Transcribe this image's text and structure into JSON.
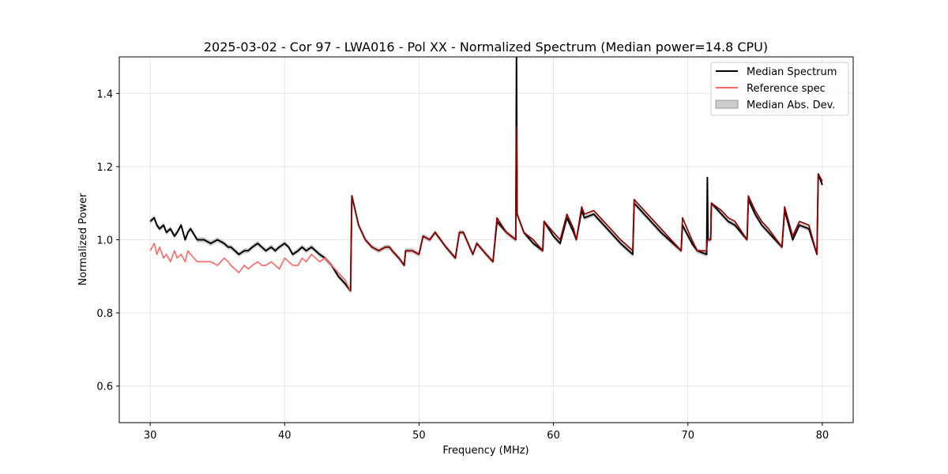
{
  "chart_data": {
    "type": "line",
    "title": "2025-03-02 - Cor 97 - LWA016 - Pol XX - Normalized Spectrum (Median power=14.8 CPU)",
    "xlabel": "Frequency (MHz)",
    "ylabel": "Normalized Power",
    "xlim": [
      27.7,
      82.3
    ],
    "ylim": [
      0.5,
      1.5
    ],
    "xticks": [
      30,
      40,
      50,
      60,
      70,
      80
    ],
    "yticks": [
      0.6,
      0.8,
      1.0,
      1.2,
      1.4
    ],
    "xtick_labels": [
      "30",
      "40",
      "50",
      "60",
      "70",
      "80"
    ],
    "ytick_labels": [
      "0.6",
      "0.8",
      "1.0",
      "1.2",
      "1.4"
    ],
    "grid": true,
    "legend_position": "top-right",
    "legend": [
      "Median Spectrum",
      "Reference spec",
      "Median Abs. Dev."
    ],
    "colors": {
      "median": "#000000",
      "reference": "#ff6666",
      "overlap": "#8b0000",
      "mad": "#aaaaaa"
    },
    "series": [
      {
        "name": "Median Spectrum",
        "x": [
          30.0,
          30.3,
          30.5,
          30.7,
          31.0,
          31.2,
          31.5,
          31.8,
          32.0,
          32.3,
          32.6,
          32.8,
          33.0,
          33.5,
          34.0,
          34.5,
          35.0,
          35.5,
          35.8,
          36.0,
          36.3,
          36.6,
          37.0,
          37.3,
          37.6,
          38.0,
          38.3,
          38.6,
          39.0,
          39.3,
          39.6,
          40.0,
          40.3,
          40.6,
          41.0,
          41.3,
          41.6,
          42.0,
          42.3,
          42.6,
          43.0,
          43.5,
          44.0,
          44.5,
          44.9,
          45.0,
          45.5,
          46.0,
          46.5,
          47.0,
          47.5,
          47.8,
          48.0,
          48.5,
          48.9,
          49.0,
          49.5,
          50.0,
          50.3,
          50.8,
          51.2,
          52.0,
          52.7,
          53.0,
          53.3,
          54.0,
          54.3,
          55.0,
          55.5,
          55.8,
          56.5,
          57.2,
          57.25,
          57.3,
          57.8,
          58.5,
          59.2,
          59.3,
          60.0,
          60.5,
          61.0,
          61.5,
          61.7,
          62.1,
          62.3,
          63.0,
          64.0,
          65.0,
          65.9,
          66.0,
          67.0,
          68.0,
          69.5,
          69.6,
          70.3,
          70.7,
          71.4,
          71.45,
          71.5,
          71.7,
          71.75,
          72.5,
          73.0,
          73.5,
          74.4,
          74.5,
          75.0,
          75.5,
          76.0,
          77.0,
          77.2,
          77.8,
          78.3,
          79.0,
          79.6,
          79.7,
          80.0
        ],
        "values": [
          1.05,
          1.06,
          1.04,
          1.03,
          1.04,
          1.02,
          1.03,
          1.01,
          1.02,
          1.04,
          1.0,
          1.02,
          1.03,
          1.0,
          1.0,
          0.99,
          1.0,
          0.99,
          0.98,
          0.98,
          0.97,
          0.96,
          0.97,
          0.97,
          0.98,
          0.99,
          0.98,
          0.97,
          0.98,
          0.97,
          0.98,
          0.99,
          0.98,
          0.96,
          0.97,
          0.98,
          0.97,
          0.98,
          0.97,
          0.96,
          0.95,
          0.93,
          0.9,
          0.88,
          0.86,
          1.12,
          1.04,
          1.0,
          0.98,
          0.97,
          0.98,
          0.98,
          0.97,
          0.95,
          0.93,
          0.97,
          0.97,
          0.96,
          1.01,
          1.0,
          1.02,
          0.98,
          0.95,
          1.02,
          1.02,
          0.96,
          0.99,
          0.96,
          0.94,
          1.05,
          1.02,
          1.0,
          1.5,
          1.07,
          1.02,
          0.99,
          0.97,
          1.05,
          1.01,
          0.99,
          1.06,
          1.02,
          1.0,
          1.08,
          1.06,
          1.07,
          1.03,
          0.99,
          0.96,
          1.1,
          1.06,
          1.02,
          0.97,
          1.04,
          0.99,
          0.97,
          0.96,
          1.17,
          1.0,
          1.0,
          1.1,
          1.07,
          1.05,
          1.04,
          1.0,
          1.11,
          1.07,
          1.04,
          1.02,
          0.98,
          1.08,
          1.0,
          1.04,
          1.03,
          0.96,
          1.18,
          1.15
        ]
      },
      {
        "name": "Reference spec",
        "x": [
          30.0,
          30.3,
          30.5,
          30.7,
          31.0,
          31.2,
          31.5,
          31.8,
          32.0,
          32.3,
          32.6,
          32.8,
          33.0,
          33.5,
          34.0,
          34.5,
          35.0,
          35.5,
          35.8,
          36.0,
          36.3,
          36.6,
          37.0,
          37.3,
          37.6,
          38.0,
          38.3,
          38.6,
          39.0,
          39.3,
          39.6,
          40.0,
          40.3,
          40.6,
          41.0,
          41.3,
          41.6,
          42.0,
          42.3,
          42.6,
          43.0,
          43.5,
          44.0,
          44.5,
          44.9,
          45.0,
          45.5,
          46.0,
          46.5,
          47.0,
          47.5,
          47.8,
          48.0,
          48.5,
          48.9,
          49.0,
          49.5,
          50.0,
          50.3,
          50.8,
          51.2,
          52.0,
          52.7,
          53.0,
          53.3,
          54.0,
          54.3,
          55.0,
          55.5,
          55.8,
          56.5,
          57.2,
          57.25,
          57.3,
          57.8,
          58.5,
          59.2,
          59.3,
          60.0,
          60.5,
          61.0,
          61.5,
          61.7,
          62.1,
          62.3,
          63.0,
          64.0,
          65.0,
          65.9,
          66.0,
          67.0,
          68.0,
          69.5,
          69.6,
          70.3,
          70.7,
          71.4,
          71.45,
          71.5,
          71.7,
          71.75,
          72.5,
          73.0,
          73.5,
          74.4,
          74.5,
          75.0,
          75.5,
          76.0,
          77.0,
          77.2,
          77.8,
          78.3,
          79.0,
          79.6,
          79.7,
          80.0
        ],
        "values": [
          0.97,
          0.99,
          0.96,
          0.98,
          0.95,
          0.96,
          0.94,
          0.97,
          0.95,
          0.96,
          0.94,
          0.97,
          0.96,
          0.94,
          0.94,
          0.94,
          0.93,
          0.95,
          0.94,
          0.93,
          0.92,
          0.91,
          0.93,
          0.92,
          0.93,
          0.94,
          0.93,
          0.93,
          0.94,
          0.93,
          0.92,
          0.95,
          0.94,
          0.93,
          0.93,
          0.95,
          0.94,
          0.96,
          0.95,
          0.94,
          0.95,
          0.93,
          0.91,
          0.89,
          0.86,
          1.12,
          1.04,
          1.0,
          0.98,
          0.97,
          0.98,
          0.98,
          0.97,
          0.95,
          0.93,
          0.97,
          0.97,
          0.96,
          1.01,
          1.0,
          1.02,
          0.98,
          0.95,
          1.02,
          1.02,
          0.96,
          0.99,
          0.96,
          0.94,
          1.06,
          1.02,
          1.0,
          1.31,
          1.07,
          1.02,
          1.0,
          0.97,
          1.05,
          1.02,
          1.0,
          1.07,
          1.03,
          1.0,
          1.09,
          1.07,
          1.08,
          1.04,
          1.0,
          0.97,
          1.11,
          1.07,
          1.03,
          0.97,
          1.06,
          1.0,
          0.97,
          0.97,
          1.0,
          1.0,
          1.0,
          1.1,
          1.08,
          1.06,
          1.05,
          1.0,
          1.12,
          1.08,
          1.05,
          1.03,
          0.98,
          1.09,
          1.01,
          1.05,
          1.04,
          0.96,
          1.18,
          1.16
        ]
      }
    ],
    "mad_halfwidth": 0.007,
    "overlap_range": [
      44.9,
      80.0
    ]
  }
}
